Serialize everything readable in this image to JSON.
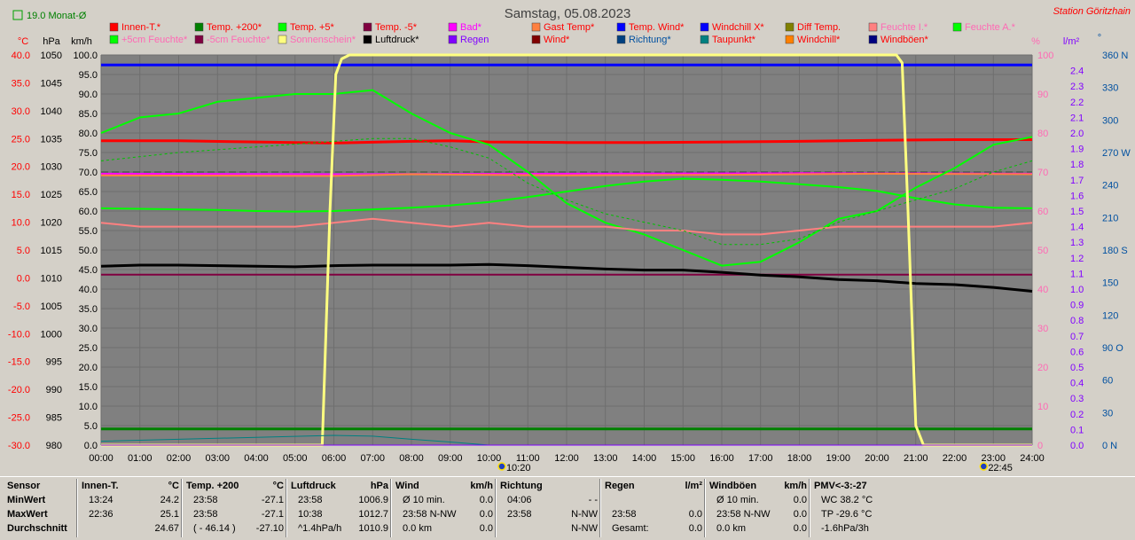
{
  "window": {
    "title": "Samstag, 05.08.2023",
    "station": "Station Göritzhain",
    "month_avg": "19.0 Monat-Ø"
  },
  "colors": {
    "background": "#d4d0c8",
    "plot_bg": "#808080",
    "axis_celsius": "#ff0000",
    "axis_percent": "#ff69b4",
    "axis_rain": "#8000ff",
    "axis_direction": "#0050a0"
  },
  "axis_units": {
    "celsius": "°C",
    "hpa": "hPa",
    "kmh": "km/h",
    "percent": "%",
    "rain": "l/m²",
    "direction": "°"
  },
  "legend": [
    {
      "label": "Innen-T.*",
      "color": "#ff0000",
      "text": "#ff0000"
    },
    {
      "label": "Temp. +200*",
      "color": "#008000",
      "text": "#ff0000"
    },
    {
      "label": "Temp. +5*",
      "color": "#00ff00",
      "text": "#ff0000"
    },
    {
      "label": "Temp. -5*",
      "color": "#800040",
      "text": "#ff0000"
    },
    {
      "label": "Bad*",
      "color": "#ff00ff",
      "text": "#ff00ff"
    },
    {
      "label": "Gast Temp*",
      "color": "#ff8040",
      "text": "#ff0000"
    },
    {
      "label": "Temp. Wind*",
      "color": "#0000ff",
      "text": "#ff0000"
    },
    {
      "label": "Windchill X*",
      "color": "#0000ff",
      "text": "#ff0000"
    },
    {
      "label": "Diff Temp.",
      "color": "#808000",
      "text": "#ff0000"
    },
    {
      "label": "Feuchte I.*",
      "color": "#ff8080",
      "text": "#ff69b4"
    },
    {
      "label": "Feuchte A.*",
      "color": "#00ff00",
      "text": "#ff69b4"
    },
    {
      "label": "+5cm Feuchte*",
      "color": "#00ff00",
      "text": "#ff69b4"
    },
    {
      "label": "-5cm Feuchte*",
      "color": "#800040",
      "text": "#ff69b4"
    },
    {
      "label": "Sonnenschein*",
      "color": "#ffff80",
      "text": "#ff69b4"
    },
    {
      "label": "Luftdruck*",
      "color": "#000000",
      "text": "#000000"
    },
    {
      "label": "Regen",
      "color": "#8000ff",
      "text": "#8000ff"
    },
    {
      "label": "Wind*",
      "color": "#800000",
      "text": "#ff0000"
    },
    {
      "label": "Richtung*",
      "color": "#004080",
      "text": "#0050a0"
    },
    {
      "label": "Taupunkt*",
      "color": "#008080",
      "text": "#ff0000"
    },
    {
      "label": "Windchill*",
      "color": "#ff8000",
      "text": "#ff0000"
    },
    {
      "label": "Windböen*",
      "color": "#000080",
      "text": "#ff0000"
    }
  ],
  "chart_data": {
    "type": "line",
    "title": "Samstag, 05.08.2023",
    "x_ticks": [
      "00:00",
      "01:00",
      "02:00",
      "03:00",
      "04:00",
      "05:00",
      "06:00",
      "07:00",
      "08:00",
      "09:00",
      "10:00",
      "11:00",
      "12:00",
      "13:00",
      "14:00",
      "15:00",
      "16:00",
      "17:00",
      "18:00",
      "19:00",
      "20:00",
      "21:00",
      "22:00",
      "23:00",
      "24:00"
    ],
    "xlim": [
      0,
      24
    ],
    "axes": {
      "celsius": {
        "ylim": [
          -30,
          40
        ],
        "ticks": [
          "40.0",
          "35.0",
          "30.0",
          "25.0",
          "20.0",
          "15.0",
          "10.0",
          "5.0",
          "0.0",
          "-5.0",
          "-10.0",
          "-15.0",
          "-20.0",
          "-25.0",
          "-30.0"
        ]
      },
      "hpa": {
        "ylim": [
          980,
          1050
        ],
        "ticks": [
          "1050",
          "1045",
          "1040",
          "1035",
          "1030",
          "1025",
          "1020",
          "1015",
          "1010",
          "1005",
          "1000",
          "995",
          "990",
          "985",
          "980"
        ]
      },
      "kmh": {
        "ylim": [
          0,
          100
        ],
        "ticks": [
          "100.0",
          "95.0",
          "90.0",
          "85.0",
          "80.0",
          "75.0",
          "70.0",
          "65.0",
          "60.0",
          "55.0",
          "50.0",
          "45.0",
          "40.0",
          "35.0",
          "30.0",
          "25.0",
          "20.0",
          "15.0",
          "10.0",
          "5.0",
          "0.0"
        ]
      },
      "percent": {
        "ylim": [
          0,
          100
        ],
        "ticks": [
          "100",
          "90",
          "80",
          "70",
          "60",
          "50",
          "40",
          "30",
          "20",
          "10",
          "0"
        ]
      },
      "rain": {
        "ylim": [
          0,
          2.5
        ],
        "ticks": [
          "2.4",
          "2.3",
          "2.2",
          "2.1",
          "2.0",
          "1.9",
          "1.8",
          "1.7",
          "1.6",
          "1.5",
          "1.4",
          "1.3",
          "1.2",
          "1.1",
          "1.0",
          "0.9",
          "0.8",
          "0.7",
          "0.6",
          "0.5",
          "0.4",
          "0.3",
          "0.2",
          "0.1",
          "0.0"
        ]
      },
      "direction": {
        "ylim": [
          0,
          360
        ],
        "ticks": [
          "360 N",
          "330",
          "300",
          "270 W",
          "240",
          "210",
          "180 S",
          "150",
          "120",
          "90 O",
          "60",
          "30",
          "0 N"
        ]
      }
    },
    "markers": [
      {
        "label": "10:20",
        "x": 10.33
      },
      {
        "label": "22:45",
        "x": 22.75
      }
    ],
    "series": [
      {
        "name": "Innen-T.*",
        "axis": "celsius",
        "color": "#ff0000",
        "width": 3,
        "x": [
          0,
          2,
          4,
          5,
          6,
          8,
          9,
          10,
          12,
          14,
          16,
          18,
          20,
          22,
          24
        ],
        "y": [
          24.6,
          24.6,
          24.4,
          24.3,
          24.2,
          24.5,
          24.6,
          24.4,
          24.3,
          24.3,
          24.4,
          24.5,
          24.7,
          24.8,
          24.8
        ]
      },
      {
        "name": "Temp. +200*",
        "axis": "celsius",
        "color": "#008000",
        "width": 3,
        "x": [
          0,
          24
        ],
        "y": [
          -27.1,
          -27.1
        ]
      },
      {
        "name": "Temp. +5*",
        "axis": "celsius",
        "color": "#00ff00",
        "width": 2,
        "x": [
          0,
          1,
          2,
          3,
          4,
          5,
          6,
          7,
          8,
          9,
          10,
          11,
          12,
          13,
          14,
          15,
          16,
          17,
          18,
          19,
          20,
          21,
          22,
          23,
          24
        ],
        "y": [
          12.5,
          12.4,
          12.3,
          12.2,
          12.0,
          11.9,
          12.0,
          12.3,
          12.6,
          13.0,
          13.6,
          14.5,
          15.5,
          16.5,
          17.3,
          17.8,
          17.6,
          17.3,
          16.8,
          16.3,
          15.6,
          14.3,
          13.2,
          12.6,
          12.5
        ]
      },
      {
        "name": "Temp. -5*",
        "axis": "celsius",
        "color": "#800040",
        "width": 2,
        "x": [
          0,
          24
        ],
        "y": [
          0.6,
          0.6
        ]
      },
      {
        "name": "Bad*",
        "axis": "celsius",
        "color": "#ff00ff",
        "width": 2,
        "x": [
          0,
          6,
          12,
          18,
          24
        ],
        "y": [
          18.7,
          18.6,
          18.7,
          18.8,
          18.7
        ]
      },
      {
        "name": "Gast Temp*",
        "axis": "celsius",
        "color": "#ff8040",
        "width": 2,
        "x": [
          0,
          6,
          8,
          12,
          16,
          20,
          24
        ],
        "y": [
          18.4,
          18.3,
          18.6,
          18.4,
          18.5,
          18.7,
          18.6
        ]
      },
      {
        "name": "Temp. Wind*",
        "axis": "celsius",
        "color": "#0000ff",
        "width": 3,
        "x": [
          0,
          24
        ],
        "y": [
          38.2,
          38.2
        ]
      },
      {
        "name": "Luftdruck*",
        "axis": "hpa",
        "color": "#000000",
        "width": 3,
        "x": [
          0,
          1,
          2,
          3,
          4,
          5,
          6,
          7,
          8,
          9,
          10,
          11,
          12,
          13,
          14,
          15,
          16,
          17,
          18,
          19,
          20,
          21,
          22,
          23,
          24
        ],
        "y": [
          1012.1,
          1012.3,
          1012.3,
          1012.2,
          1012.1,
          1012.0,
          1012.2,
          1012.3,
          1012.3,
          1012.3,
          1012.4,
          1012.2,
          1011.9,
          1011.6,
          1011.4,
          1011.4,
          1011.0,
          1010.5,
          1010.2,
          1009.7,
          1009.5,
          1009.0,
          1008.8,
          1008.3,
          1007.6
        ]
      },
      {
        "name": "Feuchte A.*",
        "axis": "percent",
        "color": "#00ff00",
        "width": 2,
        "x": [
          0,
          1,
          2,
          3,
          4,
          5,
          6,
          7,
          8,
          9,
          10,
          11,
          12,
          13,
          14,
          15,
          16,
          17,
          18,
          19,
          20,
          21,
          22,
          23,
          24
        ],
        "y": [
          80,
          84,
          85,
          88,
          89,
          90,
          90,
          91,
          85,
          80,
          77,
          70,
          62,
          57,
          54,
          50,
          46,
          47,
          52,
          58,
          60,
          66,
          71,
          77,
          79
        ]
      },
      {
        "name": "Feuchte I.*",
        "axis": "percent",
        "color": "#ff8080",
        "width": 2,
        "x": [
          0,
          1,
          2,
          3,
          4,
          5,
          6,
          7,
          8,
          9,
          10,
          11,
          12,
          13,
          14,
          15,
          16,
          17,
          18,
          19,
          20,
          21,
          22,
          23,
          24
        ],
        "y": [
          57,
          56,
          56,
          56,
          56,
          56,
          57,
          58,
          57,
          56,
          57,
          56,
          56,
          56,
          55,
          55,
          54,
          54,
          55,
          56,
          56,
          56,
          56,
          56,
          57
        ]
      },
      {
        "name": "Taupunkt*",
        "axis": "celsius",
        "color": "#00c000",
        "width": 1,
        "dash": true,
        "x": [
          0,
          2,
          4,
          6,
          7,
          8,
          9,
          10,
          11,
          12,
          13,
          14,
          15,
          16,
          17,
          18,
          19,
          20,
          21,
          22,
          23,
          24
        ],
        "y": [
          21,
          22.5,
          23.5,
          24.5,
          25,
          25,
          23.5,
          21.5,
          17,
          14,
          11.5,
          10,
          8.5,
          6,
          6,
          7,
          10,
          12,
          14,
          16,
          19,
          21
        ]
      },
      {
        "name": "Sonnenschein*",
        "axis": "percent",
        "color": "#ffff80",
        "width": 3,
        "x": [
          0,
          5.7,
          5.9,
          6.05,
          6.2,
          6.4,
          20.5,
          20.65,
          20.8,
          21.0,
          21.2,
          24
        ],
        "y": [
          0,
          0,
          60,
          95,
          99,
          100,
          100,
          98,
          60,
          5,
          0,
          0
        ]
      },
      {
        "name": "Richtung*",
        "axis": "kmh",
        "color": "#008080",
        "width": 1,
        "x": [
          0,
          2,
          4,
          6,
          7,
          8,
          9,
          10,
          24
        ],
        "y": [
          1,
          1.5,
          2,
          2.5,
          2.3,
          1.5,
          0.8,
          0,
          0
        ]
      },
      {
        "name": "Regen",
        "axis": "rain",
        "color": "#8000ff",
        "width": 1,
        "x": [
          0,
          24
        ],
        "y": [
          0,
          0
        ]
      }
    ]
  },
  "stats": {
    "row_labels": [
      "Sensor",
      "MinWert",
      "MaxWert",
      "Durchschnitt"
    ],
    "columns": [
      {
        "title": "Innen-T.",
        "unit": "°C",
        "rows": [
          [
            "13:24",
            "24.2"
          ],
          [
            "22:36",
            "25.1"
          ],
          [
            "",
            "24.67"
          ]
        ]
      },
      {
        "title": "Temp. +200",
        "unit": "°C",
        "rows": [
          [
            "23:58",
            "-27.1"
          ],
          [
            "23:58",
            "-27.1"
          ],
          [
            "( - 46.14 )",
            "-27.10"
          ]
        ]
      },
      {
        "title": "Luftdruck",
        "unit": "hPa",
        "rows": [
          [
            "23:58",
            "1006.9"
          ],
          [
            "10:38",
            "1012.7"
          ],
          [
            "^1.4hPa/h",
            "1010.9"
          ]
        ]
      },
      {
        "title": "Wind",
        "unit": "km/h",
        "rows": [
          [
            "Ø 10 min.",
            "0.0"
          ],
          [
            "23:58    N-NW",
            "0.0"
          ],
          [
            "0.0 km",
            "0.0"
          ]
        ]
      },
      {
        "title": "Richtung",
        "unit": "",
        "rows": [
          [
            "04:06",
            "- -"
          ],
          [
            "23:58",
            "N-NW"
          ],
          [
            "",
            "N-NW"
          ]
        ]
      },
      {
        "title": "Regen",
        "unit": "l/m²",
        "rows": [
          [
            "",
            ""
          ],
          [
            "23:58",
            "0.0"
          ],
          [
            "Gesamt:",
            "0.0"
          ]
        ]
      },
      {
        "title": "Windböen",
        "unit": "km/h",
        "rows": [
          [
            "Ø 10 min.",
            "0.0"
          ],
          [
            "23:58    N-NW",
            "0.0"
          ],
          [
            "0.0 km",
            "0.0"
          ]
        ]
      },
      {
        "title": "PMV<-3:-27",
        "unit": "",
        "rows": [
          [
            "WC 38.2 °C",
            ""
          ],
          [
            "TP -29.6 °C",
            ""
          ],
          [
            "-1.6hPa/3h",
            ""
          ]
        ]
      }
    ]
  }
}
